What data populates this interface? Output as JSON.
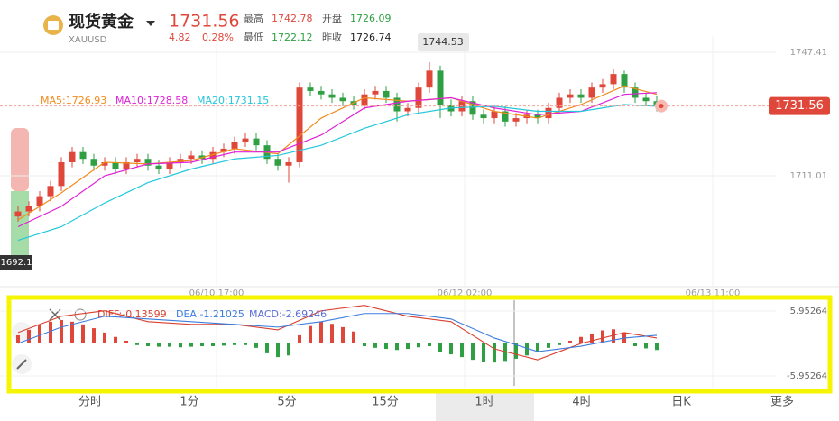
{
  "header": {
    "name": "现货黄金",
    "symbol": "XAUUSD",
    "price": 1731.56,
    "change": 4.82,
    "change_pct": "0.28%",
    "high_label": "最高",
    "high": 1742.78,
    "low_label": "最低",
    "low": 1722.12,
    "open_label": "开盘",
    "open": 1726.09,
    "prev_close_label": "昨收",
    "prev_close": 1726.74
  },
  "price_chart": {
    "type": "candlestick",
    "up_color": "#e0473b",
    "down_color": "#2ea043",
    "ylim": [
      1678.33,
      1752.19
    ],
    "yticks": [
      1747.41,
      1711.01
    ],
    "open": [
      1699,
      1700.5,
      1702,
      1705,
      1708,
      1715,
      1718,
      1716,
      1714,
      1715,
      1713,
      1715,
      1716,
      1714,
      1713,
      1715,
      1716,
      1717,
      1716,
      1718,
      1719,
      1721,
      1722,
      1720,
      1716,
      1714,
      1715,
      1737,
      1736,
      1735,
      1734,
      1733,
      1732,
      1735,
      1736,
      1734,
      1730,
      1731,
      1737,
      1742,
      1732,
      1730,
      1733,
      1729,
      1728,
      1730,
      1727,
      1728,
      1729,
      1728,
      1731,
      1734,
      1735,
      1734,
      1737,
      1738,
      1741,
      1737,
      1734,
      1733
    ],
    "high": [
      1702,
      1703.5,
      1706.5,
      1709.5,
      1716.5,
      1719.5,
      1719.5,
      1717.5,
      1716.5,
      1716.5,
      1716.5,
      1717.5,
      1717.5,
      1715.5,
      1716.5,
      1717.5,
      1718.5,
      1718.5,
      1719.5,
      1720.5,
      1722.5,
      1723.5,
      1723.5,
      1721.5,
      1717.5,
      1716.5,
      1738.5,
      1738.5,
      1737.5,
      1736.5,
      1735.5,
      1734.5,
      1736.5,
      1737.5,
      1737.5,
      1735.5,
      1732.5,
      1738.5,
      1744.53,
      1743.5,
      1733.5,
      1734.5,
      1734.5,
      1730.5,
      1731.5,
      1731.5,
      1729.5,
      1730.5,
      1730.5,
      1732.5,
      1735.5,
      1736.5,
      1736.5,
      1738.5,
      1739.5,
      1742.5,
      1742,
      1738.5,
      1735.5,
      1734.5
    ],
    "low": [
      1697.5,
      1699,
      1700.5,
      1703.5,
      1706.5,
      1713.5,
      1714.5,
      1712.5,
      1712.5,
      1711.5,
      1711.5,
      1713.5,
      1712.5,
      1711.5,
      1711.5,
      1713.5,
      1714.5,
      1714.5,
      1714.5,
      1716.5,
      1717.5,
      1719.5,
      1718.5,
      1714.5,
      1712.5,
      1709,
      1713.5,
      1734.5,
      1733.5,
      1732.5,
      1731.5,
      1730.5,
      1730.5,
      1733.5,
      1732.5,
      1727,
      1728.5,
      1729.5,
      1735.5,
      1728,
      1728.5,
      1728.5,
      1727.5,
      1726.5,
      1726.5,
      1725.5,
      1725.5,
      1726.5,
      1726.5,
      1726.5,
      1729.5,
      1732.5,
      1732.5,
      1732.5,
      1735.5,
      1736.5,
      1735.5,
      1732.5,
      1731.5,
      1730
    ],
    "close": [
      1700.5,
      1702,
      1705,
      1708,
      1715,
      1718,
      1716,
      1714,
      1715,
      1713,
      1715,
      1716,
      1714,
      1713,
      1715,
      1716,
      1717,
      1716,
      1718,
      1719,
      1721,
      1722,
      1720,
      1716,
      1714,
      1715,
      1737,
      1736,
      1735,
      1734,
      1733,
      1732,
      1735,
      1736,
      1734,
      1730,
      1731,
      1737,
      1742,
      1732,
      1730,
      1733,
      1729,
      1728,
      1730,
      1727,
      1728,
      1729,
      1728,
      1731,
      1734,
      1735,
      1734,
      1737,
      1738,
      1741,
      1737,
      1734,
      1733,
      1731.56
    ],
    "ma": [
      {
        "name": "MA5:1726.93",
        "color": "#f08c1c",
        "x": [
          0,
          4,
          8,
          12,
          16,
          20,
          24,
          28,
          32,
          36,
          40,
          44,
          48,
          52,
          56,
          59
        ],
        "values": [
          1698,
          1706,
          1715,
          1714.5,
          1715.5,
          1719,
          1717.5,
          1728,
          1734,
          1733,
          1734,
          1730,
          1728,
          1732,
          1737.5,
          1735
        ]
      },
      {
        "name": "MA10:1728.58",
        "color": "#e020d8",
        "x": [
          0,
          4,
          8,
          12,
          16,
          20,
          24,
          28,
          32,
          36,
          40,
          44,
          48,
          52,
          56,
          59
        ],
        "values": [
          1696,
          1702,
          1711,
          1714.5,
          1715,
          1718,
          1718,
          1723,
          1731,
          1733,
          1734,
          1731,
          1729,
          1730,
          1735,
          1735.5
        ]
      },
      {
        "name": "MA20:1731.15",
        "color": "#22c7dc",
        "x": [
          0,
          4,
          8,
          12,
          16,
          20,
          24,
          28,
          32,
          36,
          40,
          44,
          48,
          52,
          56,
          59
        ],
        "values": [
          1692,
          1696,
          1703,
          1709,
          1713,
          1716,
          1717,
          1720,
          1725,
          1729,
          1731,
          1731.5,
          1730,
          1730,
          1732,
          1731.5
        ]
      }
    ],
    "current_price": 1731.56,
    "peak_label": 1744.53,
    "left_label": 1692.1,
    "time_labels": [
      "06/10 17:00",
      "06/12 02:00",
      "06/13 11:00"
    ]
  },
  "macd": {
    "type": "macd",
    "ylim": [
      -7.94,
      7.94
    ],
    "yticks": [
      5.95264,
      -5.95264
    ],
    "histogram": [
      1.5,
      2.5,
      3.5,
      4,
      4.3,
      4,
      3.5,
      2.8,
      2,
      1.2,
      0.5,
      -0.3,
      -0.5,
      -0.6,
      -0.6,
      -0.7,
      -0.6,
      -0.5,
      -0.5,
      -0.4,
      -0.3,
      -0.3,
      -0.8,
      -1.8,
      -2.5,
      -2.2,
      1.5,
      3.2,
      4,
      3.6,
      3,
      2.2,
      -0.5,
      -0.8,
      -1,
      -1.2,
      -1,
      -0.7,
      -0.5,
      -1.5,
      -2,
      -2.5,
      -3,
      -3.4,
      -3.5,
      -3.2,
      -2.8,
      -2.2,
      -1.5,
      -0.8,
      -0.3,
      0.5,
      1.2,
      1.8,
      2.4,
      2.6,
      2,
      -0.5,
      -0.9,
      -1.2
    ],
    "lines": [
      {
        "name": "DIFF:-0.13599",
        "color": "#d9402f",
        "x": [
          0,
          4,
          8,
          12,
          16,
          20,
          24,
          28,
          32,
          36,
          40,
          44,
          48,
          52,
          56,
          59
        ],
        "values": [
          2,
          5,
          6,
          4,
          3.5,
          3.5,
          2.5,
          6,
          7,
          5,
          4,
          -1,
          -3,
          0,
          2,
          1
        ]
      },
      {
        "name": "DEA:-1.21025",
        "color": "#3b7ddd",
        "x": [
          0,
          4,
          8,
          12,
          16,
          20,
          24,
          28,
          32,
          36,
          40,
          44,
          48,
          52,
          56,
          59
        ],
        "values": [
          0,
          3,
          5,
          4.5,
          4,
          3.5,
          3,
          4,
          5.5,
          5.5,
          4.5,
          1,
          -1.5,
          -0.5,
          1,
          1.5
        ]
      }
    ],
    "macd_label": "MACD:-2.69246"
  },
  "tabs": [
    "分时",
    "1分",
    "5分",
    "15分",
    "1时",
    "4时",
    "日K",
    "更多"
  ]
}
